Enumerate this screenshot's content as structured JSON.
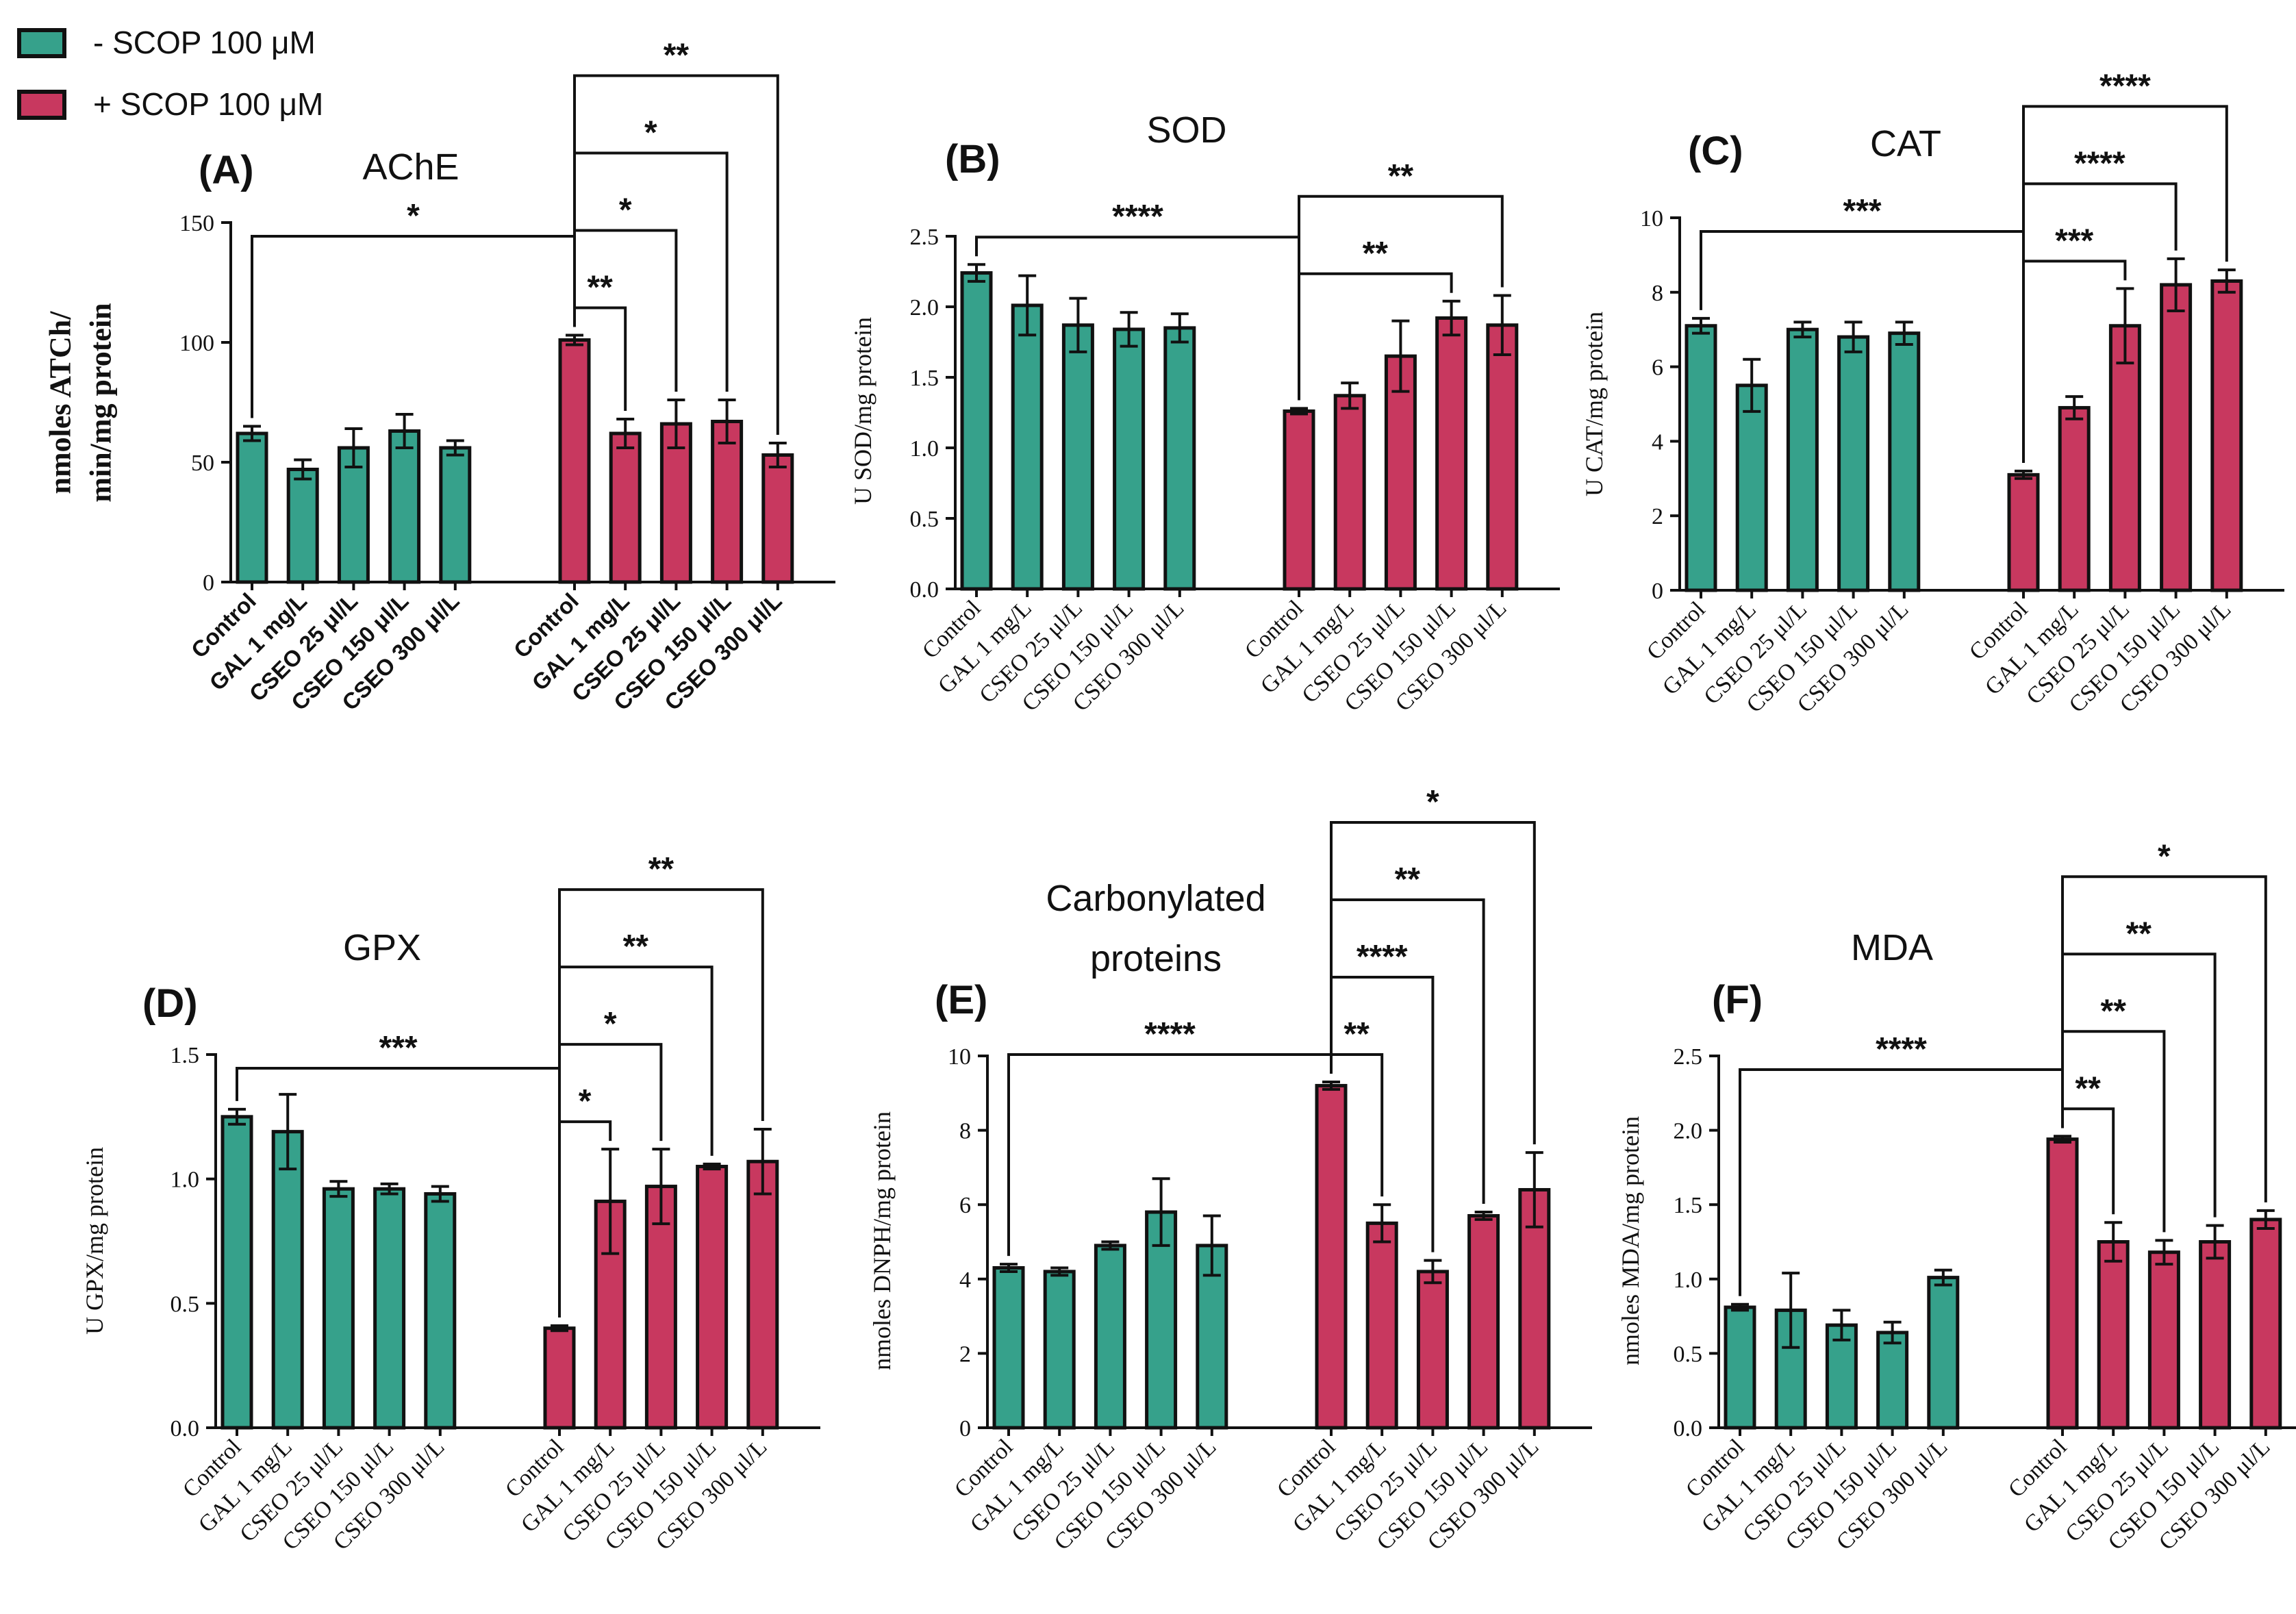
{
  "legend": [
    {
      "label": "- SCOP 100 μM",
      "color": "#36a18b"
    },
    {
      "label": "+ SCOP 100 μM",
      "color": "#c8385f"
    }
  ],
  "colors": {
    "minus": "#36a18b",
    "plus": "#c8385f",
    "axis": "#111111"
  },
  "chart_data": [
    {
      "panel": "(A)",
      "title": "AChE",
      "type": "bar",
      "ylabel": [
        "nmoles ATCh/",
        "min/mg protein"
      ],
      "ylim": [
        0,
        150
      ],
      "yticks": [
        "0",
        "50",
        "100",
        "150"
      ],
      "categories": [
        "Control",
        "GAL 1 mg/L",
        "CSEO 25 μl/L",
        "CSEO 150 μl/L",
        "CSEO 300 μl/L"
      ],
      "series": [
        {
          "name": "- SCOP 100 μM",
          "values": [
            62,
            47,
            56,
            63,
            56
          ],
          "errors": [
            3,
            4,
            8,
            7,
            3
          ]
        },
        {
          "name": "+ SCOP 100 μM",
          "values": [
            101,
            62,
            66,
            67,
            53
          ],
          "errors": [
            2,
            6,
            10,
            9,
            5
          ]
        }
      ],
      "significance": [
        {
          "from": [
            0,
            0
          ],
          "to": [
            1,
            0
          ],
          "label": "*"
        },
        {
          "from": [
            1,
            0
          ],
          "to": [
            1,
            1
          ],
          "label": "**"
        },
        {
          "from": [
            1,
            0
          ],
          "to": [
            1,
            2
          ],
          "label": "*"
        },
        {
          "from": [
            1,
            0
          ],
          "to": [
            1,
            3
          ],
          "label": "*"
        },
        {
          "from": [
            1,
            0
          ],
          "to": [
            1,
            4
          ],
          "label": "**"
        }
      ]
    },
    {
      "panel": "(B)",
      "title": "SOD",
      "type": "bar",
      "ylabel": [
        "U SOD/mg protein"
      ],
      "ylim": [
        0,
        2.5
      ],
      "yticks": [
        "0.0",
        "0.5",
        "1.0",
        "1.5",
        "2.0",
        "2.5"
      ],
      "categories": [
        "Control",
        "GAL 1 mg/L",
        "CSEO 25 μl/L",
        "CSEO 150 μl/L",
        "CSEO 300 μl/L"
      ],
      "series": [
        {
          "name": "- SCOP 100 μM",
          "values": [
            2.24,
            2.01,
            1.87,
            1.84,
            1.85
          ],
          "errors": [
            0.06,
            0.21,
            0.19,
            0.12,
            0.1
          ]
        },
        {
          "name": "+ SCOP 100 μM",
          "values": [
            1.26,
            1.37,
            1.65,
            1.92,
            1.87
          ],
          "errors": [
            0.02,
            0.09,
            0.25,
            0.12,
            0.21
          ]
        }
      ],
      "significance": [
        {
          "from": [
            0,
            0
          ],
          "to": [
            1,
            0
          ],
          "label": "****"
        },
        {
          "from": [
            1,
            0
          ],
          "to": [
            1,
            3
          ],
          "label": "**"
        },
        {
          "from": [
            1,
            0
          ],
          "to": [
            1,
            4
          ],
          "label": "**"
        }
      ]
    },
    {
      "panel": "(C)",
      "title": "CAT",
      "type": "bar",
      "ylabel": [
        "U CAT/mg protein"
      ],
      "ylim": [
        0,
        10
      ],
      "yticks": [
        "0",
        "2",
        "4",
        "6",
        "8",
        "10"
      ],
      "categories": [
        "Control",
        "GAL 1 mg/L",
        "CSEO 25 μl/L",
        "CSEO 150 μl/L",
        "CSEO 300 μl/L"
      ],
      "series": [
        {
          "name": "- SCOP 100 μM",
          "values": [
            7.1,
            5.5,
            7.0,
            6.8,
            6.9
          ],
          "errors": [
            0.2,
            0.7,
            0.2,
            0.4,
            0.3
          ]
        },
        {
          "name": "+ SCOP 100 μM",
          "values": [
            3.1,
            4.9,
            7.1,
            8.2,
            8.3
          ],
          "errors": [
            0.1,
            0.3,
            1.0,
            0.7,
            0.3
          ]
        }
      ],
      "significance": [
        {
          "from": [
            0,
            0
          ],
          "to": [
            1,
            0
          ],
          "label": "***"
        },
        {
          "from": [
            1,
            0
          ],
          "to": [
            1,
            2
          ],
          "label": "***"
        },
        {
          "from": [
            1,
            0
          ],
          "to": [
            1,
            3
          ],
          "label": "****"
        },
        {
          "from": [
            1,
            0
          ],
          "to": [
            1,
            4
          ],
          "label": "****"
        }
      ]
    },
    {
      "panel": "(D)",
      "title": "GPX",
      "type": "bar",
      "ylabel": [
        "U GPX/mg protein"
      ],
      "ylim": [
        0,
        1.5
      ],
      "yticks": [
        "0.0",
        "0.5",
        "1.0",
        "1.5"
      ],
      "categories": [
        "Control",
        "GAL 1 mg/L",
        "CSEO 25 μl/L",
        "CSEO 150 μl/L",
        "CSEO 300 μl/L"
      ],
      "series": [
        {
          "name": "- SCOP 100 μM",
          "values": [
            1.25,
            1.19,
            0.96,
            0.96,
            0.94
          ],
          "errors": [
            0.03,
            0.15,
            0.03,
            0.02,
            0.03
          ]
        },
        {
          "name": "+ SCOP 100 μM",
          "values": [
            0.4,
            0.91,
            0.97,
            1.05,
            1.07
          ],
          "errors": [
            0.01,
            0.21,
            0.15,
            0.01,
            0.13
          ]
        }
      ],
      "significance": [
        {
          "from": [
            0,
            0
          ],
          "to": [
            1,
            0
          ],
          "label": "***"
        },
        {
          "from": [
            1,
            0
          ],
          "to": [
            1,
            1
          ],
          "label": "*"
        },
        {
          "from": [
            1,
            0
          ],
          "to": [
            1,
            2
          ],
          "label": "*"
        },
        {
          "from": [
            1,
            0
          ],
          "to": [
            1,
            3
          ],
          "label": "**"
        },
        {
          "from": [
            1,
            0
          ],
          "to": [
            1,
            4
          ],
          "label": "**"
        }
      ]
    },
    {
      "panel": "(E)",
      "title": "Carbonylated\nproteins",
      "type": "bar",
      "ylabel": [
        "nmoles DNPH/mg protein"
      ],
      "ylim": [
        0,
        10
      ],
      "yticks": [
        "0",
        "2",
        "4",
        "6",
        "8",
        "10"
      ],
      "categories": [
        "Control",
        "GAL 1 mg/L",
        "CSEO 25 μl/L",
        "CSEO 150 μl/L",
        "CSEO 300 μl/L"
      ],
      "series": [
        {
          "name": "- SCOP 100 μM",
          "values": [
            4.3,
            4.2,
            4.9,
            5.8,
            4.9
          ],
          "errors": [
            0.1,
            0.1,
            0.1,
            0.9,
            0.8
          ]
        },
        {
          "name": "+ SCOP 100 μM",
          "values": [
            9.2,
            5.5,
            4.2,
            5.7,
            6.4
          ],
          "errors": [
            0.1,
            0.5,
            0.3,
            0.1,
            1.0
          ]
        }
      ],
      "significance": [
        {
          "from": [
            0,
            0
          ],
          "to": [
            1,
            0
          ],
          "label": "****"
        },
        {
          "from": [
            1,
            0
          ],
          "to": [
            1,
            1
          ],
          "label": "**"
        },
        {
          "from": [
            1,
            0
          ],
          "to": [
            1,
            2
          ],
          "label": "****"
        },
        {
          "from": [
            1,
            0
          ],
          "to": [
            1,
            3
          ],
          "label": "**"
        },
        {
          "from": [
            1,
            0
          ],
          "to": [
            1,
            4
          ],
          "label": "*"
        }
      ]
    },
    {
      "panel": "(F)",
      "title": "MDA",
      "type": "bar",
      "ylabel": [
        "nmoles MDA/mg protein"
      ],
      "ylim": [
        0,
        2.5
      ],
      "yticks": [
        "0.0",
        "0.5",
        "1.0",
        "1.5",
        "2.0",
        "2.5"
      ],
      "categories": [
        "Control",
        "GAL 1 mg/L",
        "CSEO 25 μl/L",
        "CSEO 150 μl/L",
        "CSEO 300 μl/L"
      ],
      "series": [
        {
          "name": "- SCOP 100 μM",
          "values": [
            0.81,
            0.79,
            0.69,
            0.64,
            1.01
          ],
          "errors": [
            0.02,
            0.25,
            0.1,
            0.07,
            0.05
          ]
        },
        {
          "name": "+ SCOP 100 μM",
          "values": [
            1.94,
            1.25,
            1.18,
            1.25,
            1.4
          ],
          "errors": [
            0.02,
            0.13,
            0.08,
            0.11,
            0.06
          ]
        }
      ],
      "significance": [
        {
          "from": [
            0,
            0
          ],
          "to": [
            1,
            0
          ],
          "label": "****"
        },
        {
          "from": [
            1,
            0
          ],
          "to": [
            1,
            1
          ],
          "label": "**"
        },
        {
          "from": [
            1,
            0
          ],
          "to": [
            1,
            2
          ],
          "label": "**"
        },
        {
          "from": [
            1,
            0
          ],
          "to": [
            1,
            3
          ],
          "label": "**"
        },
        {
          "from": [
            1,
            0
          ],
          "to": [
            1,
            4
          ],
          "label": "*"
        }
      ]
    }
  ]
}
